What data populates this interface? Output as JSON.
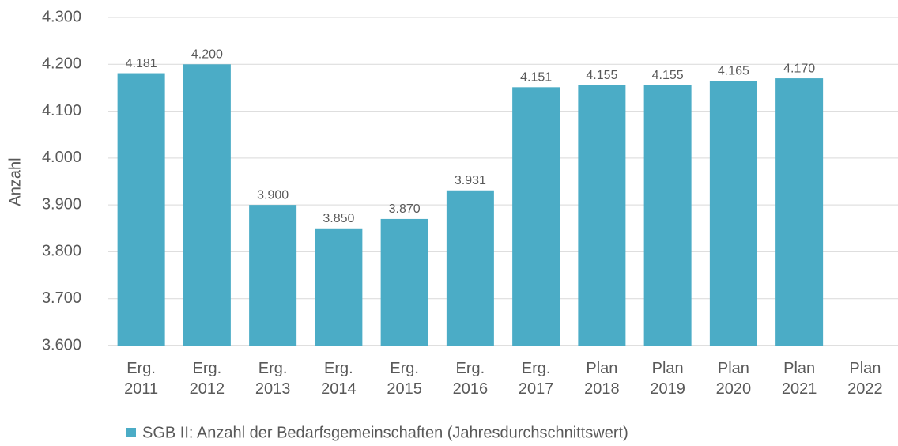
{
  "chart_data": {
    "type": "bar",
    "y_label": "Anzahl",
    "categories": [
      "Erg. 2011",
      "Erg. 2012",
      "Erg. 2013",
      "Erg. 2014",
      "Erg. 2015",
      "Erg. 2016",
      "Erg. 2017",
      "Plan 2018",
      "Plan 2019",
      "Plan 2020",
      "Plan 2021",
      "Plan 2022"
    ],
    "series": [
      {
        "name": "SGB II: Anzahl der Bedarfsgemeinschaften (Jahresdurchschnittswert)",
        "color": "#4bacc6",
        "values": [
          4181,
          4200,
          3900,
          3850,
          3870,
          3931,
          4151,
          4155,
          4155,
          4165,
          4170,
          null
        ],
        "value_labels": [
          "4.181",
          "4.200",
          "3.900",
          "3.850",
          "3.870",
          "3.931",
          "4.151",
          "4.155",
          "4.155",
          "4.165",
          "4.170",
          null
        ]
      }
    ],
    "ylim": [
      3600,
      4300
    ],
    "yticks": [
      {
        "value": 3600,
        "label": "3.600"
      },
      {
        "value": 3700,
        "label": "3.700"
      },
      {
        "value": 3800,
        "label": "3.800"
      },
      {
        "value": 3900,
        "label": "3.900"
      },
      {
        "value": 4000,
        "label": "4.000"
      },
      {
        "value": 4100,
        "label": "4.100"
      },
      {
        "value": 4200,
        "label": "4.200"
      },
      {
        "value": 4300,
        "label": "4.300"
      }
    ],
    "grid": true,
    "legend": "bottom"
  }
}
